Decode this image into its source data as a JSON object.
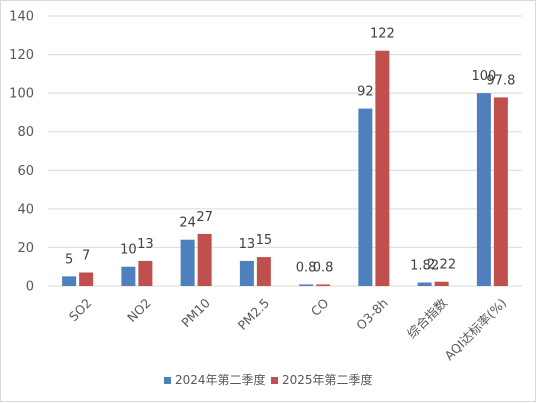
{
  "chart_data": {
    "type": "bar",
    "categories": [
      "SO2",
      "NO2",
      "PM10",
      "PM2.5",
      "CO",
      "O3-8h",
      "综合指数",
      "AQI达标率(%)"
    ],
    "series": [
      {
        "name": "2024年第二季度",
        "values": [
          5,
          10,
          24,
          13,
          0.8,
          92,
          1.82,
          100
        ],
        "labels": [
          "5",
          "10",
          "24",
          "13",
          "0.8",
          "92",
          "1.82",
          "100"
        ],
        "color": "#4f7fbd"
      },
      {
        "name": "2025年第二季度",
        "values": [
          7,
          13,
          27,
          15,
          0.8,
          122,
          2.22,
          97.8
        ],
        "labels": [
          "7",
          "13",
          "27",
          "15",
          "0.8",
          "122",
          "2.22",
          "97.8"
        ],
        "color": "#c0504d"
      }
    ],
    "ylim": [
      0,
      140
    ],
    "yticks": [
      "0",
      "20",
      "40",
      "60",
      "80",
      "100",
      "120",
      "140"
    ],
    "grid": true,
    "legend_position": "bottom"
  }
}
